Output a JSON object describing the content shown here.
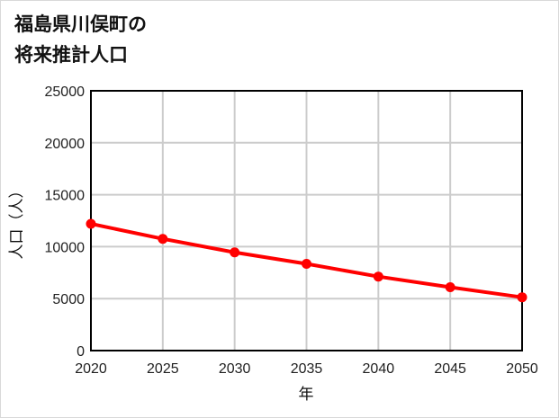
{
  "title_lines": [
    "福島県川俣町の",
    "将来推計人口"
  ],
  "colors": {
    "series": "#ff0000",
    "grid": "#cccccc",
    "axis": "#000000",
    "border": "#d9d9d9"
  },
  "chart_data": {
    "type": "line",
    "title": "福島県川俣町の将来推計人口",
    "xlabel": "年",
    "ylabel": "人口（人）",
    "x": [
      2020,
      2025,
      2030,
      2035,
      2040,
      2045,
      2050
    ],
    "series": [
      {
        "name": "人口",
        "values": [
          12200,
          10750,
          9450,
          8350,
          7120,
          6100,
          5130
        ],
        "color": "#ff0000"
      }
    ],
    "ylim": [
      0,
      25000
    ],
    "yticks": [
      0,
      5000,
      10000,
      15000,
      20000,
      25000
    ],
    "xticks": [
      2020,
      2025,
      2030,
      2035,
      2040,
      2045,
      2050
    ],
    "grid": true,
    "legend": "none"
  }
}
